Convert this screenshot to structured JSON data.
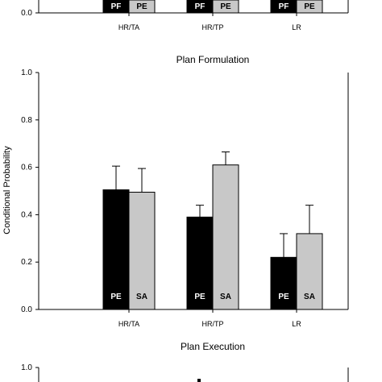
{
  "colors": {
    "series_dark": "#000000",
    "series_light": "#c8c8c8",
    "axis": "#000000",
    "label_on_dark": "#ffffff",
    "label_on_light": "#000000"
  },
  "chart_data": [
    {
      "type": "bar",
      "title": "",
      "categories": [
        "HR/TA",
        "HR/TP",
        "LR"
      ],
      "bar_labels": [
        "PF",
        "PE"
      ],
      "ylim": [
        0,
        1.0
      ],
      "yticks_visible": [
        "0.0"
      ],
      "series": [
        {
          "values": [
            null,
            null,
            null
          ]
        },
        {
          "values": [
            null,
            null,
            null
          ]
        }
      ]
    },
    {
      "type": "bar",
      "title": "Plan Formulation",
      "ylabel": "Conditional Probability",
      "categories": [
        "HR/TA",
        "HR/TP",
        "LR"
      ],
      "bar_labels": [
        "PE",
        "SA"
      ],
      "ylim": [
        0,
        1.0
      ],
      "yticks": [
        "0.0",
        "0.2",
        "0.4",
        "0.6",
        "0.8",
        "1.0"
      ],
      "yticks_values": [
        0,
        0.2,
        0.4,
        0.6,
        0.8,
        1.0
      ],
      "series": [
        {
          "values": [
            0.505,
            0.39,
            0.22
          ],
          "errors": [
            0.1,
            0.05,
            0.1
          ]
        },
        {
          "values": [
            0.495,
            0.61,
            0.32
          ],
          "errors": [
            0.1,
            0.055,
            0.12
          ]
        }
      ]
    },
    {
      "type": "bar",
      "title": "Plan Execution",
      "ylim": [
        0,
        1.0
      ],
      "yticks_visible": [
        "1.0"
      ]
    }
  ]
}
